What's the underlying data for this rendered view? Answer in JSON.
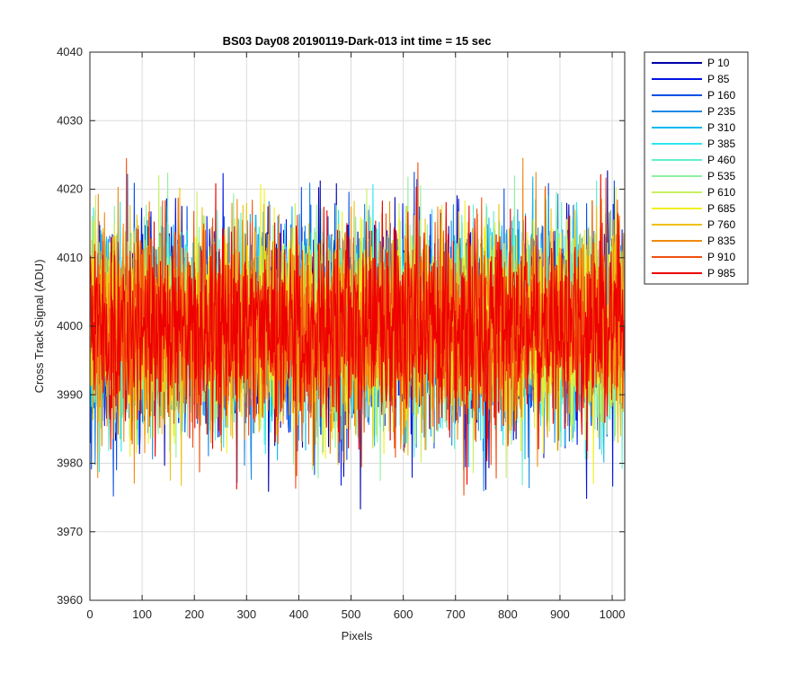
{
  "chart_data": {
    "type": "line",
    "title": "BS03 Day08 20190119-Dark-013 int time = 15 sec",
    "xlabel": "Pixels",
    "ylabel": "Cross Track Signal (ADU)",
    "xlim": [
      0,
      1024
    ],
    "ylim": [
      3960,
      4040
    ],
    "xticks": [
      0,
      100,
      200,
      300,
      400,
      500,
      600,
      700,
      800,
      900,
      1000
    ],
    "yticks": [
      3960,
      3970,
      3980,
      3990,
      4000,
      4010,
      4020,
      4030,
      4040
    ],
    "grid": true,
    "legend_position": "outside-top-right",
    "signal_level": 4000,
    "series": [
      {
        "name": "P 10",
        "color": "#0000aa"
      },
      {
        "name": "P 85",
        "color": "#0015e6"
      },
      {
        "name": "P 160",
        "color": "#0a50e6"
      },
      {
        "name": "P 235",
        "color": "#1a8ae6"
      },
      {
        "name": "P 310",
        "color": "#12b8f0"
      },
      {
        "name": "P 385",
        "color": "#2ee6f0"
      },
      {
        "name": "P 460",
        "color": "#60f0d0"
      },
      {
        "name": "P 535",
        "color": "#90f0a0"
      },
      {
        "name": "P 610",
        "color": "#c8f060"
      },
      {
        "name": "P 685",
        "color": "#f0f020"
      },
      {
        "name": "P 760",
        "color": "#f0c010"
      },
      {
        "name": "P 835",
        "color": "#f08a10"
      },
      {
        "name": "P 910",
        "color": "#f05010"
      },
      {
        "name": "P 985",
        "color": "#ee0000"
      }
    ]
  }
}
